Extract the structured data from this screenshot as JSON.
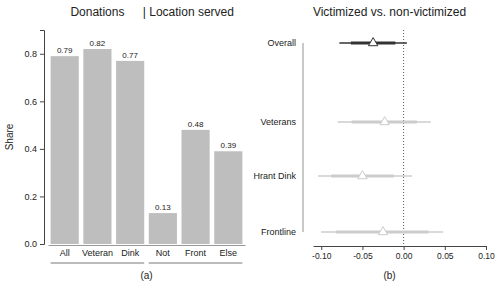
{
  "chart_data": [
    {
      "type": "bar",
      "title": "Donations",
      "subtitle": "| Location served",
      "caption": "(a)",
      "y_label": "Share",
      "categories": [
        "All",
        "Veteran",
        "Dink",
        "Not",
        "Front",
        "Else"
      ],
      "values": [
        0.79,
        0.82,
        0.77,
        0.13,
        0.48,
        0.39
      ],
      "color": "#bebebe",
      "ylim": [
        0,
        0.9
      ],
      "yticks": [
        {
          "value": 0,
          "label": "0.0"
        },
        0.2,
        0.4,
        0.6,
        0.8
      ],
      "data_labels": true
    },
    {
      "type": "dot",
      "orientation": "horizontal",
      "title": "Victimized vs. non-victimized",
      "caption": "(b)",
      "categories": [
        "Overall",
        "Veterans",
        "Hrant Dink",
        "Frontline"
      ],
      "values": [
        -0.037,
        -0.023,
        -0.05,
        -0.025
      ],
      "ci_low": [
        -0.078,
        -0.08,
        -0.104,
        -0.1
      ],
      "ci_high": [
        0.004,
        0.033,
        0.01,
        0.048
      ],
      "ci90_low": [
        -0.064,
        -0.063,
        -0.088,
        -0.082
      ],
      "ci90_high": [
        -0.01,
        0.016,
        -0.012,
        0.03
      ],
      "colors": [
        "#333333",
        "#cccccc",
        "#cccccc",
        "#cccccc"
      ],
      "marker": "triangle",
      "xlim": [
        -0.11,
        0.1
      ],
      "xticks": [
        {
          "value": -0.1,
          "label": "-0.10"
        },
        {
          "value": -0.05,
          "label": "-0.05"
        },
        {
          "value": 0,
          "label": "0.00"
        },
        {
          "value": 0.05,
          "label": "0.05"
        },
        {
          "value": 0.1,
          "label": "0.10"
        }
      ],
      "reference_x": 0
    }
  ]
}
